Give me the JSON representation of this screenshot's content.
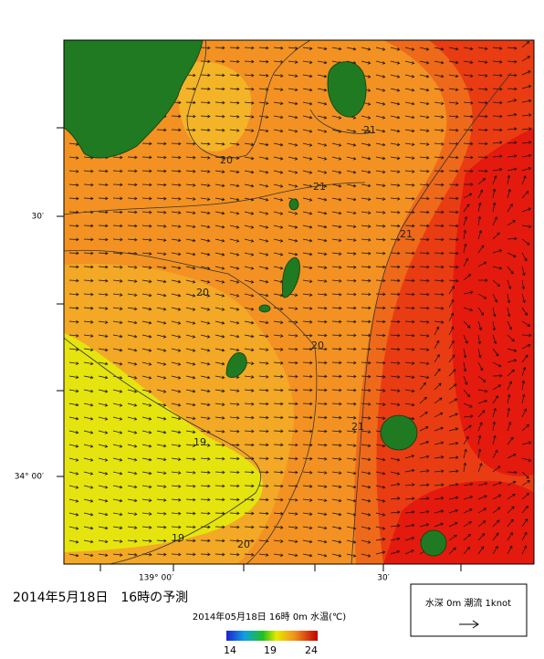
{
  "map": {
    "lat_labels": [
      "30′",
      "34° 00′"
    ],
    "lon_labels": [
      "139° 00′",
      "30′"
    ],
    "contour_labels": [
      "20",
      "21",
      "21",
      "21",
      "20",
      "20",
      "21",
      "19",
      "19",
      "20"
    ],
    "title": "2014年5月18日　16時の予測",
    "subtitle": "2014年05月18日 16時 0m 水温(℃)",
    "colorbar_ticks": [
      14,
      19,
      24
    ],
    "legend": "水深 0m 潮流 1knot"
  }
}
